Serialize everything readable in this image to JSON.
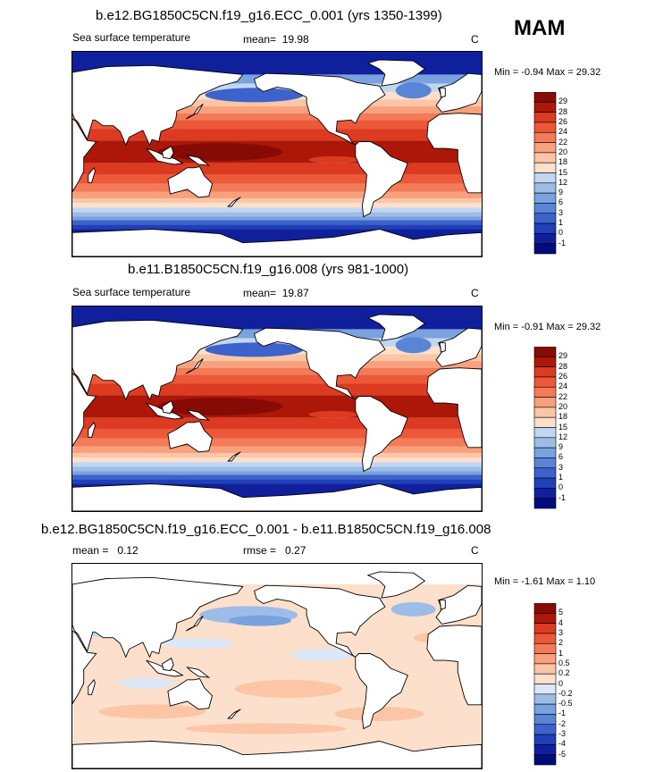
{
  "season": "MAM",
  "colors": {
    "warm": [
      "#fde0cc",
      "#fcc5a5",
      "#f9a07c",
      "#f47b58",
      "#ec5838",
      "#dc3b22",
      "#c92712",
      "#ad1708",
      "#860b05"
    ],
    "cool": [
      "#dce8f7",
      "#c1d6f0",
      "#9dbde8",
      "#7aa2df",
      "#5a84d6",
      "#3c63cc",
      "#2040b9",
      "#10209c",
      "#000c7a"
    ],
    "land": "#ffffff",
    "coast": "#000000"
  },
  "panels": [
    {
      "title": "b.e12.BG1850C5CN.f19_g16.ECC_0.001 (yrs 1350-1399)",
      "variable": "Sea surface temperature",
      "stat_label": "mean=",
      "stat_value": "19.98",
      "units": "C",
      "min_label": "Min =",
      "min_value": "-0.94",
      "max_label": "Max =",
      "max_value": "29.32",
      "colorbar_labels": [
        "29",
        "28",
        "26",
        "24",
        "22",
        "20",
        "18",
        "15",
        "12",
        "9",
        "6",
        "3",
        "1",
        "0",
        "-1"
      ]
    },
    {
      "title": "b.e11.B1850C5CN.f19_g16.008 (yrs 981-1000)",
      "variable": "Sea surface temperature",
      "stat_label": "mean=",
      "stat_value": "19.87",
      "units": "C",
      "min_label": "Min =",
      "min_value": "-0.91",
      "max_label": "Max =",
      "max_value": "29.32",
      "colorbar_labels": [
        "29",
        "28",
        "26",
        "24",
        "22",
        "20",
        "18",
        "15",
        "12",
        "9",
        "6",
        "3",
        "1",
        "0",
        "-1"
      ]
    },
    {
      "title": "b.e12.BG1850C5CN.f19_g16.ECC_0.001 - b.e11.B1850C5CN.f19_g16.008",
      "stat_label": "mean =",
      "stat_value": "0.12",
      "rmse_label": "rmse =",
      "rmse_value": "0.27",
      "units": "C",
      "min_label": "Min =",
      "min_value": "-1.61",
      "max_label": "Max =",
      "max_value": "1.10",
      "colorbar_labels": [
        "5",
        "4",
        "3",
        "2",
        "1",
        "0.5",
        "0.2",
        "0",
        "-0.2",
        "-0.5",
        "-1",
        "-2",
        "-3",
        "-4",
        "-5"
      ]
    }
  ],
  "chart_data": [
    {
      "type": "heatmap",
      "title": "b.e12.BG1850C5CN.f19_g16.ECC_0.001 (yrs 1350-1399)",
      "variable": "Sea surface temperature",
      "units": "C",
      "mean": 19.98,
      "min": -0.94,
      "max": 29.32,
      "levels": [
        -1,
        0,
        1,
        3,
        6,
        9,
        12,
        15,
        18,
        20,
        22,
        24,
        26,
        28,
        29
      ],
      "xlim": [
        30,
        390
      ],
      "ylim": [
        -90,
        90
      ],
      "description_of_pattern": "warm pool > 29 in western Pacific/Indian Ocean, cold < 0 near Antarctica and Arctic"
    },
    {
      "type": "heatmap",
      "title": "b.e11.B1850C5CN.f19_g16.008 (yrs 981-1000)",
      "variable": "Sea surface temperature",
      "units": "C",
      "mean": 19.87,
      "min": -0.91,
      "max": 29.32,
      "levels": [
        -1,
        0,
        1,
        3,
        6,
        9,
        12,
        15,
        18,
        20,
        22,
        24,
        26,
        28,
        29
      ],
      "xlim": [
        30,
        390
      ],
      "ylim": [
        -90,
        90
      ]
    },
    {
      "type": "heatmap",
      "title": "b.e12.BG1850C5CN.f19_g16.ECC_0.001 - b.e11.B1850C5CN.f19_g16.008",
      "units": "C",
      "mean": 0.12,
      "rmse": 0.27,
      "min": -1.61,
      "max": 1.1,
      "levels": [
        -5,
        -4,
        -3,
        -2,
        -1,
        -0.5,
        -0.2,
        0,
        0.2,
        0.5,
        1,
        2,
        3,
        4,
        5
      ],
      "xlim": [
        30,
        390
      ],
      "ylim": [
        -90,
        90
      ]
    }
  ]
}
